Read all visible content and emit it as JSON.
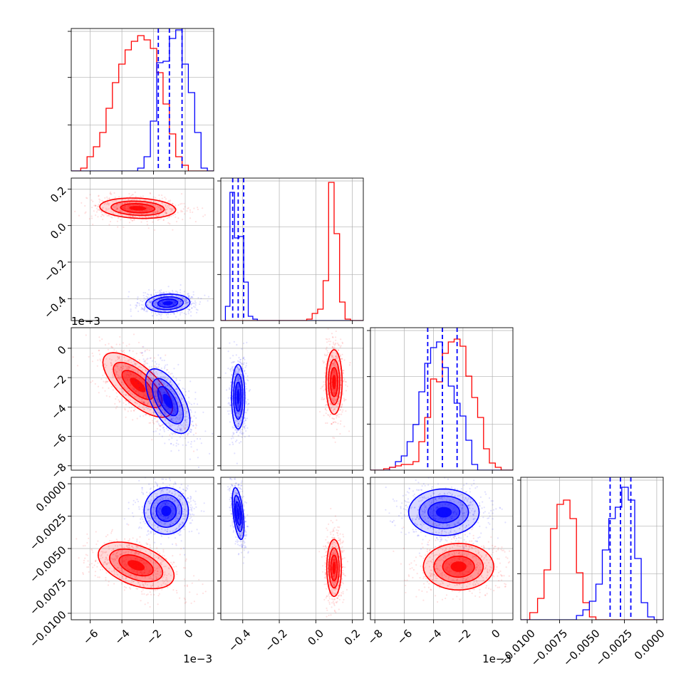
{
  "chart_data": [
    {
      "type": "histogram",
      "panel": "p00",
      "x_param": 0,
      "xlim": [
        -0.0072,
        0.0018
      ],
      "ylim": [
        0,
        1.0
      ],
      "bins_x": [
        -0.0072,
        -0.0066,
        -0.0062,
        -0.0058,
        -0.0054,
        -0.005,
        -0.0046,
        -0.0042,
        -0.0038,
        -0.0034,
        -0.003,
        -0.0026,
        -0.0022,
        -0.0018,
        -0.0014,
        -0.001,
        -0.0006,
        -0.0002,
        0.0002,
        0.0006,
        0.001,
        0.0014,
        0.0018
      ],
      "series": [
        {
          "name": "",
          "color": "#ff0000",
          "values": [
            0.0,
            0.02,
            0.1,
            0.17,
            0.27,
            0.44,
            0.62,
            0.75,
            0.85,
            0.91,
            0.95,
            0.92,
            0.86,
            0.69,
            0.47,
            0.26,
            0.1,
            0.04,
            0.0,
            0.0,
            0.0,
            0.0
          ]
        },
        {
          "name": "",
          "color": "#0000ff",
          "values": [
            0.0,
            0.0,
            0.0,
            0.0,
            0.0,
            0.0,
            0.0,
            0.0,
            0.0,
            0.0,
            0.02,
            0.1,
            0.35,
            0.76,
            0.77,
            0.93,
            0.99,
            0.75,
            0.55,
            0.27,
            0.02,
            0.0
          ]
        }
      ],
      "quantiles": [
        -0.0017,
        -0.001,
        -0.0002
      ],
      "quantile_color": "#0000ff"
    },
    {
      "type": "histogram",
      "panel": "p11",
      "x_param": 1,
      "xlim": [
        -0.52,
        0.26
      ],
      "ylim": [
        0,
        1.0
      ],
      "bins_x": [
        -0.52,
        -0.495,
        -0.47,
        -0.445,
        -0.42,
        -0.395,
        -0.37,
        -0.345,
        -0.32,
        -0.2,
        -0.05,
        -0.02,
        0.01,
        0.04,
        0.07,
        0.1,
        0.13,
        0.16,
        0.19,
        0.26
      ],
      "series": [
        {
          "name": "",
          "color": "#0000ff",
          "values": [
            0.0,
            0.1,
            0.9,
            0.58,
            0.59,
            0.27,
            0.03,
            0.01,
            0.0,
            0.0,
            0.0,
            0.0,
            0.0,
            0.0,
            0.0,
            0.0,
            0.0,
            0.0,
            0.0
          ]
        },
        {
          "name": "",
          "color": "#ff0000",
          "values": [
            0.0,
            0.0,
            0.0,
            0.0,
            0.0,
            0.0,
            0.0,
            0.0,
            0.0,
            0.0,
            0.01,
            0.05,
            0.08,
            0.28,
            0.97,
            0.61,
            0.13,
            0.01,
            0.0
          ]
        }
      ],
      "quantiles": [
        -0.455,
        -0.425,
        -0.395
      ],
      "quantile_color": "#0000ff"
    },
    {
      "type": "histogram",
      "panel": "p22",
      "x_param": 2,
      "xlim": [
        -0.0083,
        0.0014
      ],
      "ylim": [
        0,
        1.0
      ],
      "bins_x": [
        -0.0083,
        -0.0078,
        -0.0074,
        -0.007,
        -0.0066,
        -0.0062,
        -0.0058,
        -0.0054,
        -0.005,
        -0.0046,
        -0.0042,
        -0.0038,
        -0.0034,
        -0.003,
        -0.0026,
        -0.0022,
        -0.0018,
        -0.0014,
        -0.001,
        -0.0006,
        -0.0002,
        0.0002,
        0.0006,
        0.0014
      ],
      "series": [
        {
          "name": "",
          "color": "#0000ff",
          "values": [
            0.0,
            0.0,
            0.0,
            0.02,
            0.06,
            0.1,
            0.2,
            0.32,
            0.55,
            0.75,
            0.86,
            0.9,
            0.72,
            0.59,
            0.47,
            0.38,
            0.21,
            0.04,
            0.0,
            0.0,
            0.0,
            0.0,
            0.0
          ]
        },
        {
          "name": "",
          "color": "#ff0000",
          "values": [
            0.0,
            0.0,
            0.01,
            0.02,
            0.03,
            0.04,
            0.04,
            0.06,
            0.2,
            0.37,
            0.64,
            0.62,
            0.82,
            0.9,
            0.92,
            0.87,
            0.66,
            0.51,
            0.37,
            0.15,
            0.05,
            0.02,
            0.0
          ]
        }
      ],
      "quantiles": [
        -0.0044,
        -0.0034,
        -0.0024
      ],
      "quantile_color": "#0000ff"
    },
    {
      "type": "histogram",
      "panel": "p33",
      "x_param": 3,
      "xlim": [
        -0.0105,
        0.0005
      ],
      "ylim": [
        0,
        1.0
      ],
      "bins_x": [
        -0.0105,
        -0.0098,
        -0.0092,
        -0.0087,
        -0.0082,
        -0.0077,
        -0.0072,
        -0.0067,
        -0.0062,
        -0.0057,
        -0.0052,
        -0.0047,
        -0.0042,
        -0.0037,
        -0.0032,
        -0.0027,
        -0.0022,
        -0.0017,
        -0.0012,
        -0.0007,
        -0.0002,
        0.0005
      ],
      "series": [
        {
          "name": "",
          "color": "#ff0000",
          "values": [
            0.0,
            0.05,
            0.15,
            0.35,
            0.64,
            0.81,
            0.84,
            0.71,
            0.33,
            0.12,
            0.02,
            0.0,
            0.0,
            0.0,
            0.0,
            0.0,
            0.0,
            0.0,
            0.0,
            0.0,
            0.0
          ]
        },
        {
          "name": "",
          "color": "#0000ff",
          "values": [
            0.0,
            0.0,
            0.0,
            0.0,
            0.0,
            0.0,
            0.0,
            0.0,
            0.03,
            0.07,
            0.13,
            0.25,
            0.49,
            0.71,
            0.79,
            0.93,
            0.84,
            0.43,
            0.12,
            0.02,
            0.0
          ]
        }
      ],
      "quantiles": [
        -0.0036,
        -0.0028,
        -0.002
      ],
      "quantile_color": "#0000ff"
    },
    {
      "type": "scatter-contour",
      "panel": "p10",
      "x_param": 0,
      "y_param": 1,
      "xlim": [
        -0.0072,
        0.0018
      ],
      "ylim": [
        -0.52,
        0.26
      ],
      "clusters": [
        {
          "color": "#ff0000",
          "cx": -0.003,
          "cy": 0.095,
          "sx": 0.0012,
          "sy": 0.028,
          "rho": -0.15
        },
        {
          "color": "#0000ff",
          "cx": -0.0011,
          "cy": -0.425,
          "sx": 0.0007,
          "sy": 0.025,
          "rho": 0.1
        }
      ]
    },
    {
      "type": "scatter-contour",
      "panel": "p20",
      "x_param": 0,
      "y_param": 2,
      "xlim": [
        -0.0072,
        0.0018
      ],
      "ylim": [
        -0.0083,
        0.0014
      ],
      "clusters": [
        {
          "color": "#ff0000",
          "cx": -0.003,
          "cy": -0.0025,
          "sx": 0.0011,
          "sy": 0.0011,
          "rho": -0.7
        },
        {
          "color": "#0000ff",
          "cx": -0.0011,
          "cy": -0.0036,
          "sx": 0.0007,
          "sy": 0.0011,
          "rho": -0.6
        }
      ]
    },
    {
      "type": "scatter-contour",
      "panel": "p21",
      "x_param": 1,
      "y_param": 2,
      "xlim": [
        -0.52,
        0.26
      ],
      "ylim": [
        -0.0083,
        0.0014
      ],
      "clusters": [
        {
          "color": "#0000ff",
          "cx": -0.425,
          "cy": -0.0033,
          "sx": 0.018,
          "sy": 0.0011,
          "rho": 0.0
        },
        {
          "color": "#ff0000",
          "cx": 0.1,
          "cy": -0.0023,
          "sx": 0.022,
          "sy": 0.0011,
          "rho": 0.0
        }
      ]
    },
    {
      "type": "scatter-contour",
      "panel": "p30",
      "x_param": 0,
      "y_param": 3,
      "xlim": [
        -0.0072,
        0.0018
      ],
      "ylim": [
        -0.0105,
        0.0005
      ],
      "clusters": [
        {
          "color": "#0000ff",
          "cx": -0.0012,
          "cy": -0.0021,
          "sx": 0.0007,
          "sy": 0.0009,
          "rho": 0.0
        },
        {
          "color": "#ff0000",
          "cx": -0.0031,
          "cy": -0.0063,
          "sx": 0.0012,
          "sy": 0.0009,
          "rho": -0.45
        }
      ]
    },
    {
      "type": "scatter-contour",
      "panel": "p31",
      "x_param": 1,
      "y_param": 3,
      "xlim": [
        -0.52,
        0.26
      ],
      "ylim": [
        -0.0105,
        0.0005
      ],
      "clusters": [
        {
          "color": "#0000ff",
          "cx": -0.425,
          "cy": -0.0023,
          "sx": 0.016,
          "sy": 0.001,
          "rho": -0.5
        },
        {
          "color": "#ff0000",
          "cx": 0.1,
          "cy": -0.0065,
          "sx": 0.02,
          "sy": 0.0011,
          "rho": 0.0
        }
      ]
    },
    {
      "type": "scatter-contour",
      "panel": "p32",
      "x_param": 2,
      "y_param": 3,
      "xlim": [
        -0.0083,
        0.0014
      ],
      "ylim": [
        -0.0105,
        0.0005
      ],
      "clusters": [
        {
          "color": "#0000ff",
          "cx": -0.0033,
          "cy": -0.0022,
          "sx": 0.0012,
          "sy": 0.0009,
          "rho": 0.0
        },
        {
          "color": "#ff0000",
          "cx": -0.0023,
          "cy": -0.0064,
          "sx": 0.0012,
          "sy": 0.0009,
          "rho": 0.0
        }
      ]
    }
  ],
  "axes": {
    "param0": {
      "ticks": [
        -0.006,
        -0.004,
        -0.002,
        0.0
      ],
      "tick_labels": [
        "−6",
        "−4",
        "−2",
        "0"
      ],
      "offset": "1e−3"
    },
    "param1": {
      "ticks": [
        -0.4,
        -0.2,
        0.0,
        0.2
      ],
      "tick_labels": [
        "−0.4",
        "−0.2",
        "0.0",
        "0.2"
      ],
      "offset": ""
    },
    "param2": {
      "ticks": [
        -0.008,
        -0.006,
        -0.004,
        -0.002,
        0.0
      ],
      "tick_labels": [
        "−8",
        "−6",
        "−4",
        "−2",
        "0"
      ],
      "offset": "1e−3"
    },
    "param3": {
      "ticks": [
        -0.01,
        -0.0075,
        -0.005,
        -0.0025,
        0.0
      ],
      "tick_labels": [
        "−0.0100",
        "−0.0075",
        "−0.0050",
        "−0.0025",
        "0.0000"
      ],
      "offset": ""
    },
    "y_param1": {
      "ticks": [
        -0.4,
        -0.2,
        0.0,
        0.2
      ],
      "tick_labels": [
        "−0.4",
        "−0.2",
        "0.0",
        "0.2"
      ]
    },
    "y_param2": {
      "ticks": [
        -0.008,
        -0.006,
        -0.004,
        -0.002,
        0.0
      ],
      "tick_labels": [
        "−8",
        "−6",
        "−4",
        "−2",
        "0"
      ],
      "offset": "1e−3"
    },
    "y_param3": {
      "ticks": [
        -0.01,
        -0.0075,
        -0.005,
        -0.0025,
        0.0
      ],
      "tick_labels": [
        "−0.0100",
        "−0.0075",
        "−0.0050",
        "−0.0025",
        "0.0000"
      ]
    }
  },
  "colors": {
    "red": "#ff0000",
    "blue": "#0000ff",
    "grid": "#b0b0b0"
  },
  "grid": true
}
